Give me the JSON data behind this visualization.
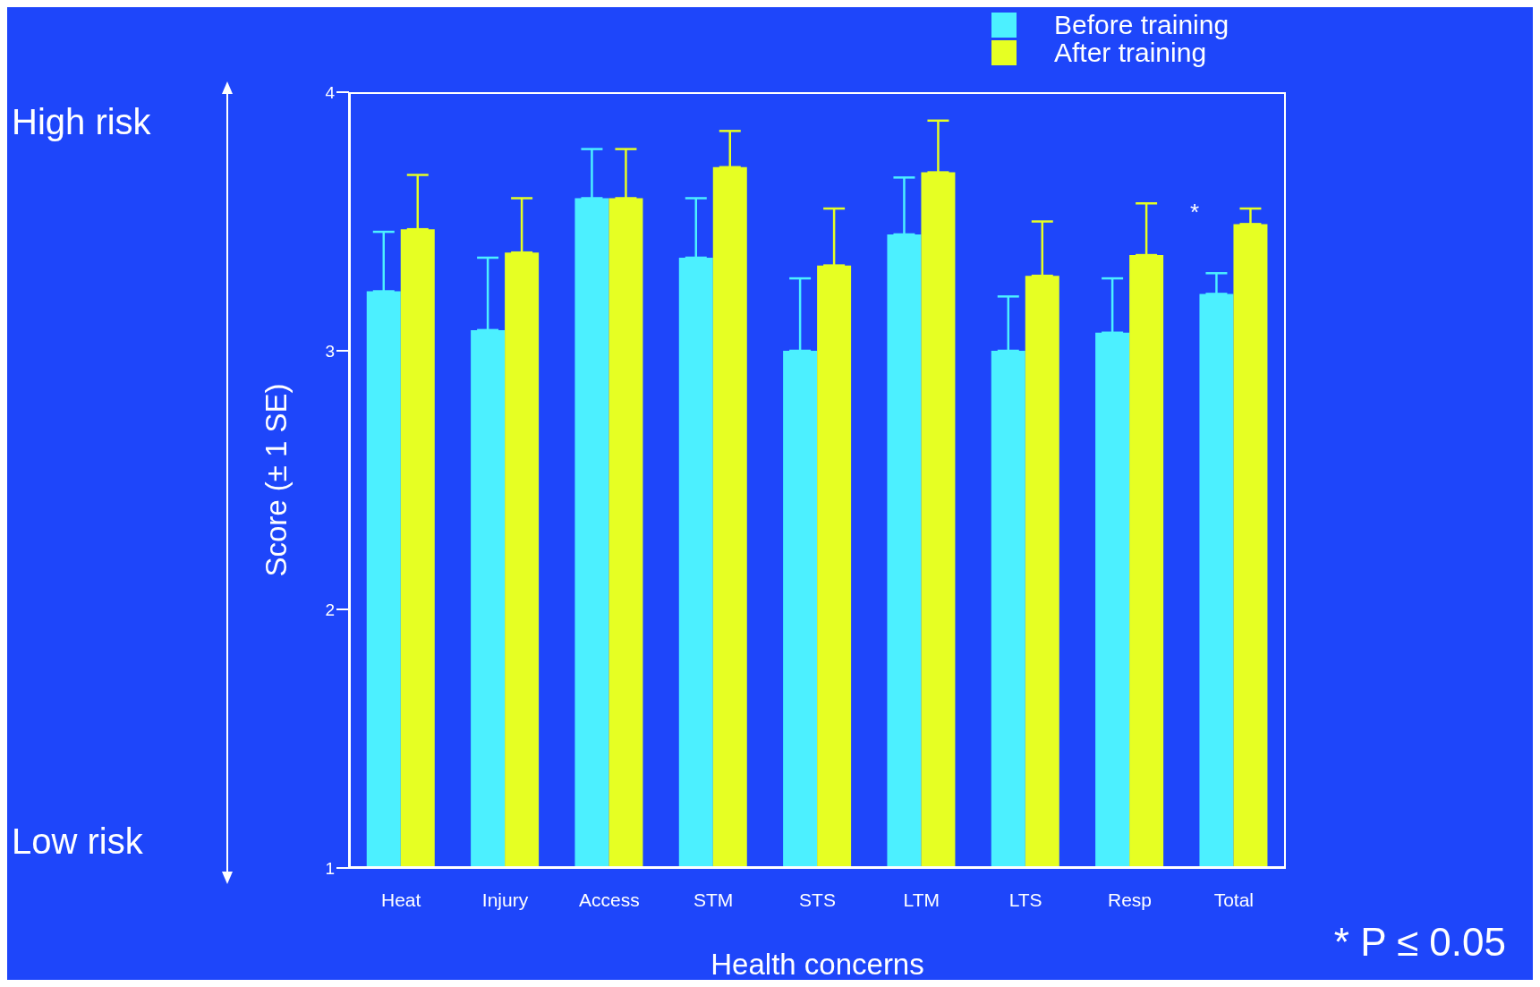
{
  "chart_data": {
    "type": "bar",
    "xlabel": "Health concerns",
    "ylabel": "Score (± 1 SE)",
    "categories": [
      "Heat",
      "Injury",
      "Access",
      "STM",
      "STS",
      "LTM",
      "LTS",
      "Resp",
      "Total"
    ],
    "series": [
      {
        "name": "Before training",
        "color": "#4cf0ff",
        "values": [
          3.23,
          3.08,
          3.59,
          3.36,
          3.0,
          3.45,
          3.0,
          3.07,
          3.22
        ],
        "errors": [
          [
            3.23,
            3.46
          ],
          [
            3.08,
            3.36
          ],
          [
            3.59,
            3.78
          ],
          [
            3.36,
            3.59
          ],
          [
            3.0,
            3.28
          ],
          [
            3.45,
            3.67
          ],
          [
            3.0,
            3.21
          ],
          [
            3.07,
            3.28
          ],
          [
            3.22,
            3.3
          ]
        ]
      },
      {
        "name": "After training",
        "color": "#e6ff23",
        "values": [
          3.47,
          3.38,
          3.59,
          3.71,
          3.33,
          3.69,
          3.29,
          3.37,
          3.49
        ],
        "errors": [
          [
            3.47,
            3.68
          ],
          [
            3.38,
            3.59
          ],
          [
            3.59,
            3.78
          ],
          [
            3.71,
            3.85
          ],
          [
            3.33,
            3.55
          ],
          [
            3.69,
            3.89
          ],
          [
            3.29,
            3.5
          ],
          [
            3.37,
            3.57
          ],
          [
            3.49,
            3.55
          ]
        ]
      }
    ],
    "ylim": [
      1,
      4
    ],
    "yticks": [
      1,
      2,
      3,
      4
    ],
    "grid": false,
    "legend": "top right",
    "annotations": [
      "High risk",
      "Low risk",
      "*",
      "* P ≤ 0.05"
    ]
  }
}
